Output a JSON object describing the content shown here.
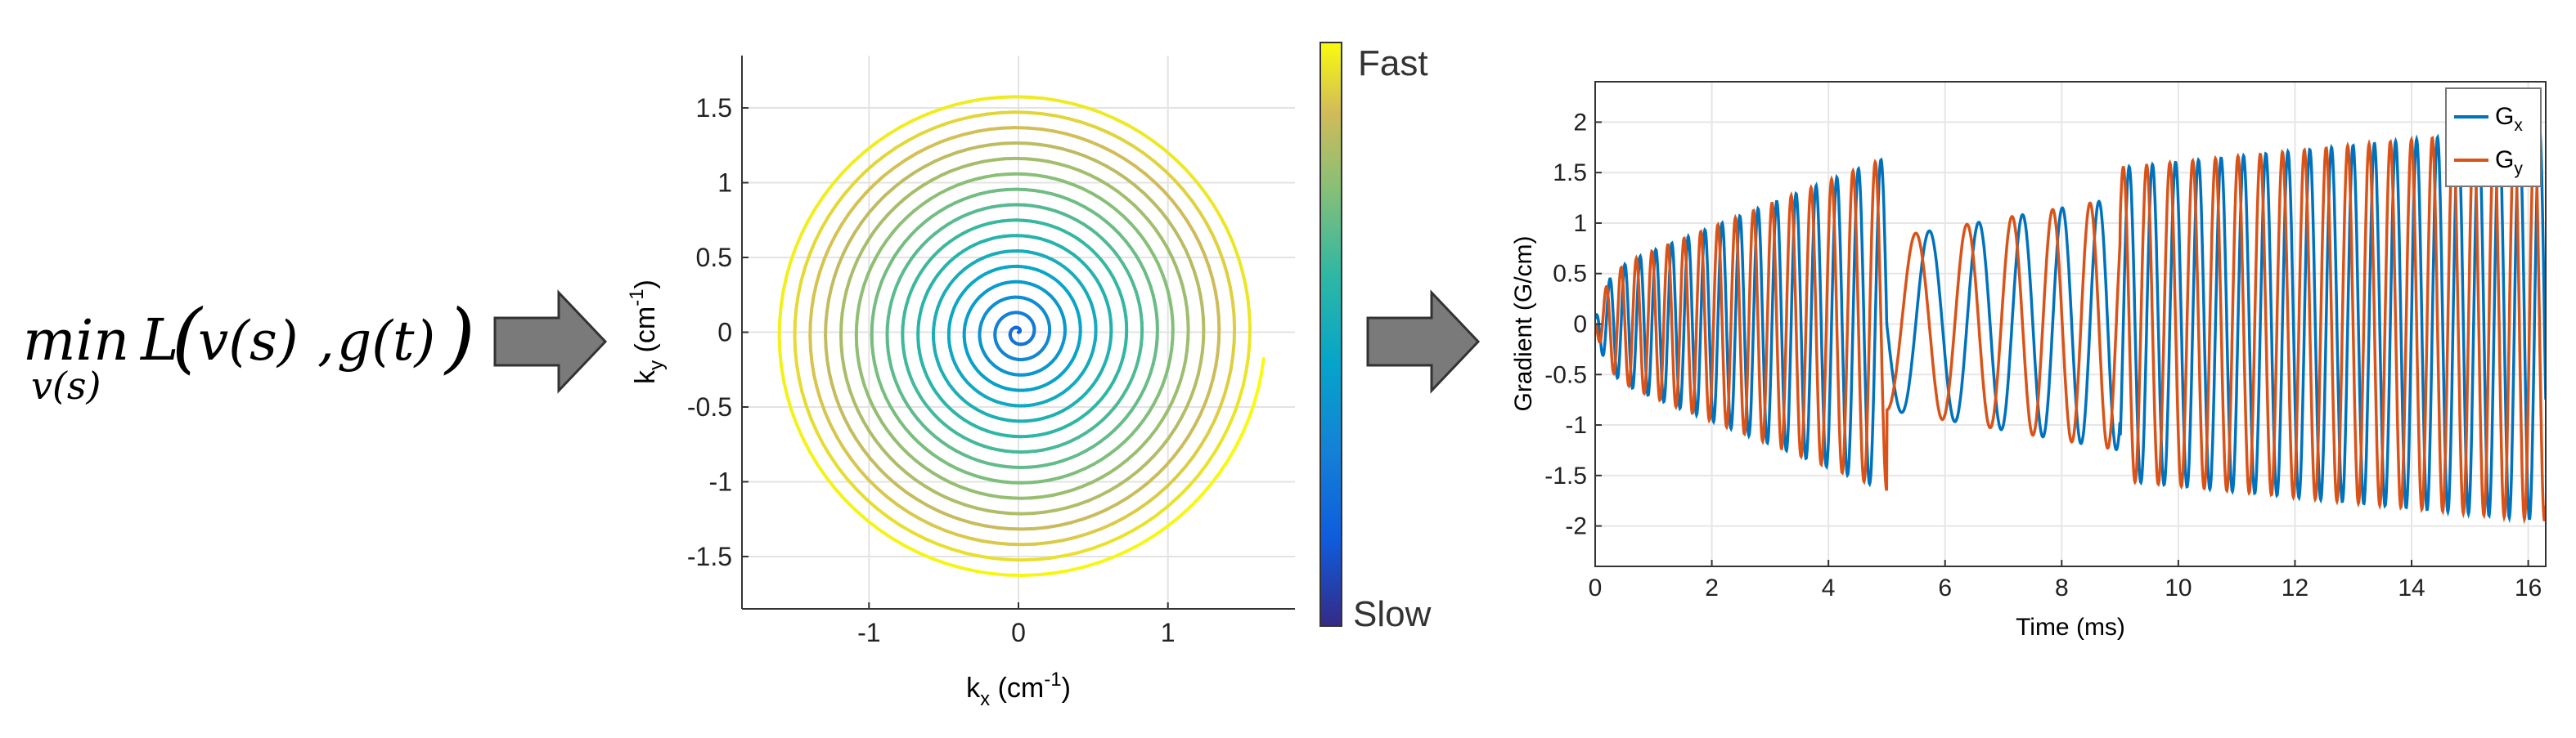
{
  "equation": {
    "op": "min",
    "subscript": "v(s)",
    "func": "L",
    "arg1": "v(s)",
    "arg2": "g(t)"
  },
  "colorbar": {
    "top_label": "Fast",
    "bottom_label": "Slow"
  },
  "chart_data": [
    {
      "type": "line",
      "name": "spiral-k-space",
      "xlabel": "k",
      "xlabel_sub": "x",
      "xlabel_unit": "(cm",
      "xlabel_sup": "-1",
      "ylabel": "k",
      "ylabel_sub": "y",
      "ylabel_unit": "(cm",
      "ylabel_sup": "-1",
      "xlim": [
        -1.85,
        1.85
      ],
      "ylim": [
        -1.85,
        1.85
      ],
      "xticks": [
        -1,
        0,
        1
      ],
      "yticks": [
        -1.5,
        -1,
        -0.5,
        0,
        0.5,
        1,
        1.5
      ],
      "grid": true,
      "spiral": {
        "turns": 16,
        "max_radius": 1.65,
        "end_x": 1.66,
        "end_y": -0.18
      },
      "colorscale": "parula"
    },
    {
      "type": "line",
      "name": "gradient-waveform",
      "xlabel": "Time (ms)",
      "ylabel": "Gradient (G/cm)",
      "xlim": [
        0,
        16.3
      ],
      "ylim": [
        -2.4,
        2.4
      ],
      "xticks": [
        0,
        2,
        4,
        6,
        8,
        10,
        12,
        14,
        16
      ],
      "yticks": [
        -2,
        -1.5,
        -1,
        -0.5,
        0,
        0.5,
        1,
        1.5,
        2
      ],
      "grid": true,
      "legend_position": "top-right",
      "series": [
        {
          "name": "G",
          "sub": "x",
          "color": "#0072BD"
        },
        {
          "name": "G",
          "sub": "y",
          "color": "#D95319"
        }
      ]
    }
  ]
}
